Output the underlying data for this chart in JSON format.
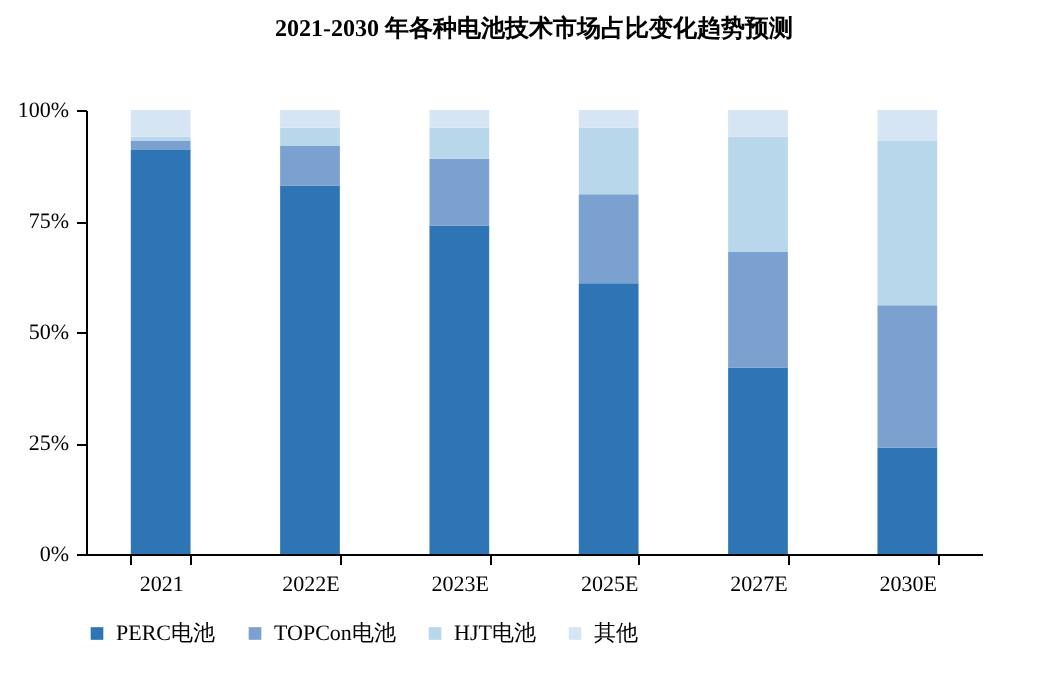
{
  "chart_data": {
    "type": "bar",
    "title": "2021-2030 年各种电池技术市场占比变化趋势预测",
    "stacked": true,
    "categories": [
      "2021",
      "2022E",
      "2023E",
      "2025E",
      "2027E",
      "2030E"
    ],
    "series": [
      {
        "name": "PERC电池",
        "color": "#2e75b6",
        "values": [
          91,
          83,
          74,
          61,
          42,
          24
        ]
      },
      {
        "name": "TOPCon电池",
        "color": "#7aa1cf",
        "values": [
          2,
          9,
          15,
          20,
          26,
          32
        ]
      },
      {
        "name": "HJT电池",
        "color": "#b9d7ea",
        "values": [
          1,
          4,
          7,
          15,
          26,
          37
        ]
      },
      {
        "name": "其他",
        "color": "#d6e5f3",
        "values": [
          6,
          4,
          4,
          4,
          6,
          7
        ]
      }
    ],
    "ylim": [
      0,
      100
    ],
    "yticks": [
      {
        "value": 0,
        "label": "0%"
      },
      {
        "value": 25,
        "label": "25%"
      },
      {
        "value": 50,
        "label": "50%"
      },
      {
        "value": 75,
        "label": "75%"
      },
      {
        "value": 100,
        "label": "100%"
      }
    ],
    "grid": false,
    "legend": "bottom"
  }
}
